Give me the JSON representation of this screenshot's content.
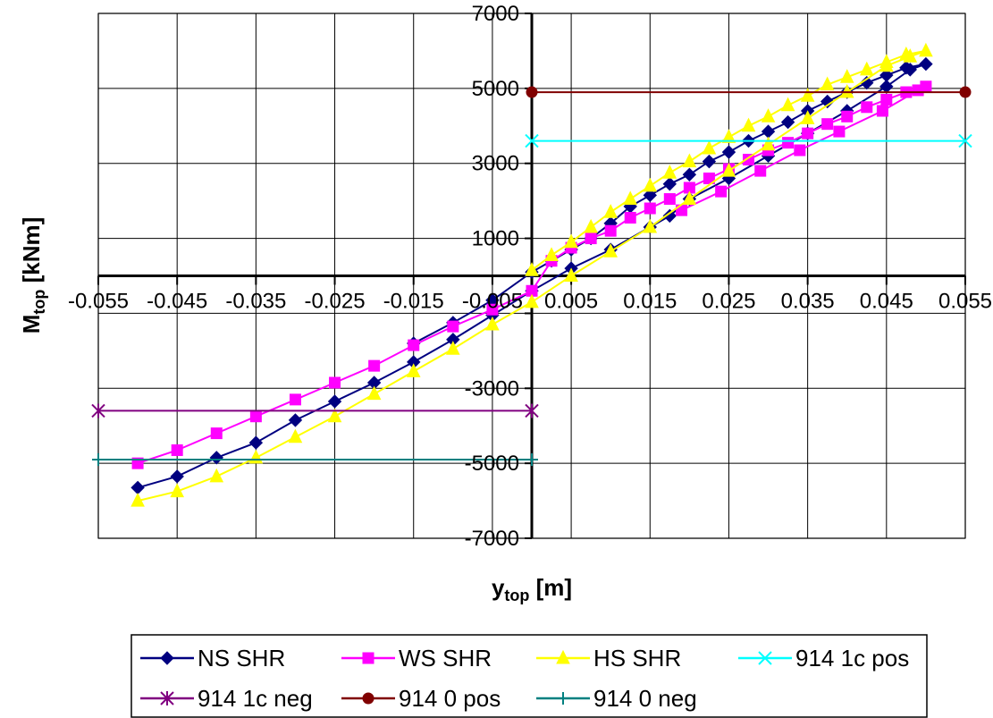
{
  "chart_data": {
    "type": "line",
    "xlabel": "y",
    "xlabel_sub": "top",
    "xlabel_unit": " [m]",
    "ylabel": "M",
    "ylabel_sub": "top",
    "ylabel_unit": " [kNm]",
    "xlim": [
      -0.055,
      0.055
    ],
    "ylim": [
      -7000,
      7000
    ],
    "x_ticks": [
      -0.055,
      -0.045,
      -0.035,
      -0.025,
      -0.015,
      -0.005,
      0.005,
      0.015,
      0.025,
      0.035,
      0.045,
      0.055
    ],
    "x_tick_labels": [
      "-0.055",
      "-0.045",
      "-0.035",
      "-0.025",
      "-0.015",
      "-0.005",
      "0.005",
      "0.015",
      "0.025",
      "0.035",
      "0.045",
      "0.055"
    ],
    "y_ticks": [
      -7000,
      -5000,
      -3000,
      -1000,
      1000,
      3000,
      5000,
      7000
    ],
    "y_tick_labels": [
      "-7000",
      "-5000",
      "-3000",
      "",
      "1000",
      "3000",
      "5000",
      "7000"
    ],
    "grid": true,
    "legend_position": "bottom",
    "series": [
      {
        "name": "NS SHR",
        "color": "#000080",
        "marker": "diamond",
        "points": [
          [
            -0.05,
            -5650
          ],
          [
            -0.045,
            -5350
          ],
          [
            -0.04,
            -4850
          ],
          [
            -0.035,
            -4450
          ],
          [
            -0.03,
            -3850
          ],
          [
            -0.025,
            -3350
          ],
          [
            -0.02,
            -2850
          ],
          [
            -0.015,
            -2300
          ],
          [
            -0.01,
            -1700
          ],
          [
            -0.005,
            -1050
          ],
          [
            0.0,
            -400
          ],
          [
            0.005,
            200
          ],
          [
            0.01,
            700
          ],
          [
            0.015,
            1300
          ],
          [
            0.0175,
            1600
          ],
          [
            0.02,
            2050
          ],
          [
            0.025,
            2600
          ],
          [
            0.03,
            3200
          ],
          [
            0.035,
            3800
          ],
          [
            0.04,
            4400
          ],
          [
            0.045,
            5050
          ],
          [
            0.048,
            5500
          ],
          [
            0.05,
            5650
          ],
          [
            0.0475,
            5550
          ],
          [
            0.045,
            5350
          ],
          [
            0.0425,
            5150
          ],
          [
            0.04,
            4900
          ],
          [
            0.0375,
            4650
          ],
          [
            0.035,
            4400
          ],
          [
            0.0325,
            4100
          ],
          [
            0.03,
            3850
          ],
          [
            0.0275,
            3600
          ],
          [
            0.025,
            3300
          ],
          [
            0.0225,
            3050
          ],
          [
            0.02,
            2700
          ],
          [
            0.0175,
            2450
          ],
          [
            0.015,
            2150
          ],
          [
            0.0125,
            1850
          ],
          [
            0.01,
            1400
          ],
          [
            0.0075,
            1000
          ],
          [
            0.005,
            700
          ],
          [
            0.0025,
            400
          ],
          [
            0.0,
            100
          ],
          [
            -0.005,
            -650
          ],
          [
            -0.01,
            -1250
          ],
          [
            -0.015,
            -1800
          ]
        ]
      },
      {
        "name": "WS SHR",
        "color": "#FF00FF",
        "marker": "square",
        "points": [
          [
            -0.05,
            -5000
          ],
          [
            -0.045,
            -4650
          ],
          [
            -0.04,
            -4200
          ],
          [
            -0.035,
            -3750
          ],
          [
            -0.03,
            -3300
          ],
          [
            -0.025,
            -2850
          ],
          [
            -0.02,
            -2400
          ],
          [
            -0.015,
            -1850
          ],
          [
            -0.01,
            -1350
          ],
          [
            -0.005,
            -900
          ],
          [
            0.0,
            -400
          ],
          [
            0.0025,
            400
          ],
          [
            0.005,
            750
          ],
          [
            0.0075,
            1000
          ],
          [
            0.01,
            1200
          ],
          [
            0.0125,
            1550
          ],
          [
            0.015,
            1800
          ],
          [
            0.0175,
            2050
          ],
          [
            0.02,
            2350
          ],
          [
            0.0225,
            2600
          ],
          [
            0.025,
            2850
          ],
          [
            0.0275,
            3100
          ],
          [
            0.03,
            3350
          ],
          [
            0.0325,
            3550
          ],
          [
            0.035,
            3800
          ],
          [
            0.0375,
            4050
          ],
          [
            0.04,
            4250
          ],
          [
            0.0425,
            4500
          ],
          [
            0.045,
            4700
          ],
          [
            0.0475,
            4900
          ],
          [
            0.05,
            5050
          ],
          [
            0.049,
            4950
          ],
          [
            0.0445,
            4400
          ],
          [
            0.039,
            3850
          ],
          [
            0.034,
            3350
          ],
          [
            0.029,
            2800
          ],
          [
            0.024,
            2250
          ],
          [
            0.019,
            1750
          ]
        ]
      },
      {
        "name": "HS SHR",
        "color": "#FFFF00",
        "marker": "triangle",
        "points": [
          [
            -0.05,
            -6000
          ],
          [
            -0.045,
            -5750
          ],
          [
            -0.04,
            -5350
          ],
          [
            -0.035,
            -4850
          ],
          [
            -0.03,
            -4300
          ],
          [
            -0.025,
            -3750
          ],
          [
            -0.02,
            -3150
          ],
          [
            -0.015,
            -2550
          ],
          [
            -0.01,
            -1950
          ],
          [
            -0.005,
            -1300
          ],
          [
            0.0,
            -700
          ],
          [
            0.005,
            0
          ],
          [
            0.01,
            650
          ],
          [
            0.015,
            1300
          ],
          [
            0.02,
            2050
          ],
          [
            0.025,
            2800
          ],
          [
            0.03,
            3500
          ],
          [
            0.035,
            4200
          ],
          [
            0.04,
            4900
          ],
          [
            0.045,
            5600
          ],
          [
            0.048,
            5850
          ],
          [
            0.05,
            6000
          ],
          [
            0.0475,
            5900
          ],
          [
            0.045,
            5700
          ],
          [
            0.0425,
            5500
          ],
          [
            0.04,
            5300
          ],
          [
            0.0375,
            5100
          ],
          [
            0.035,
            4800
          ],
          [
            0.0325,
            4550
          ],
          [
            0.03,
            4250
          ],
          [
            0.0275,
            4000
          ],
          [
            0.025,
            3700
          ],
          [
            0.0225,
            3400
          ],
          [
            0.02,
            3050
          ],
          [
            0.0175,
            2750
          ],
          [
            0.015,
            2400
          ],
          [
            0.0125,
            2050
          ],
          [
            0.01,
            1700
          ],
          [
            0.0075,
            1300
          ],
          [
            0.005,
            900
          ],
          [
            0.0025,
            550
          ],
          [
            0.0,
            150
          ]
        ]
      },
      {
        "name": "914 1c pos",
        "color": "#00FFFF",
        "marker": "x",
        "points": [
          [
            0.0,
            3600
          ],
          [
            0.055,
            3600
          ]
        ]
      },
      {
        "name": "914 1c neg",
        "color": "#800080",
        "marker": "star",
        "points": [
          [
            -0.055,
            -3600
          ],
          [
            0.0,
            -3600
          ]
        ]
      },
      {
        "name": "914 0 pos",
        "color": "#800000",
        "marker": "circle",
        "points": [
          [
            0.0,
            4900
          ],
          [
            0.055,
            4900
          ]
        ]
      },
      {
        "name": "914 0 neg",
        "color": "#008080",
        "marker": "plus",
        "points": [
          [
            -0.055,
            -4900
          ],
          [
            0.0,
            -4900
          ]
        ]
      }
    ]
  }
}
